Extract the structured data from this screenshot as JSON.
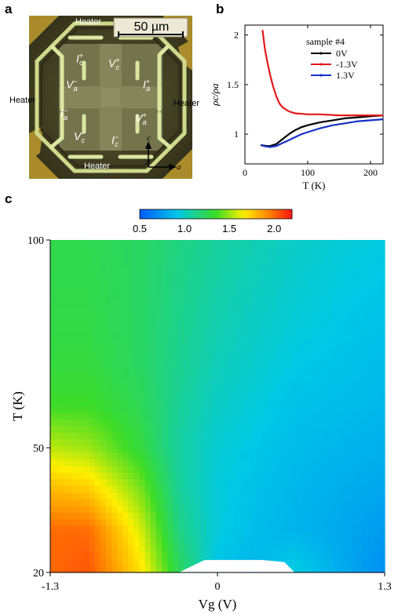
{
  "panels": {
    "a": "a",
    "b": "b",
    "c": "c"
  },
  "micrograph": {
    "scale_bar": "50 µm",
    "heater_labels": [
      "Heater",
      "Heater",
      "Heater",
      "Heater"
    ],
    "electrodes": [
      {
        "main": "I",
        "sub": "c",
        "sup": "+"
      },
      {
        "main": "V",
        "sub": "c",
        "sup": "+"
      },
      {
        "main": "V",
        "sub": "a",
        "sup": "−"
      },
      {
        "main": "I",
        "sub": "a",
        "sup": "+"
      },
      {
        "main": "I",
        "sub": "a",
        "sup": "−"
      },
      {
        "main": "V",
        "sub": "a",
        "sup": "+"
      },
      {
        "main": "V",
        "sub": "c",
        "sup": "−"
      },
      {
        "main": "I",
        "sub": "c",
        "sup": "−"
      }
    ],
    "axis_c": "c",
    "axis_a": "a",
    "colors": {
      "background": "#3d3a20",
      "gold": "#c6a536",
      "pad": "#d8e69a",
      "film": "#6a6b45"
    }
  },
  "chart_data": [
    {
      "type": "line",
      "panel": "b",
      "xlabel": "T (K)",
      "ylabel": "ρc/ρa",
      "xlim": [
        0,
        220
      ],
      "ylim": [
        0.7,
        2.1
      ],
      "xticks": [
        0,
        100,
        200
      ],
      "yticks": [
        1,
        1.5,
        2
      ],
      "legend_title": "sample #4",
      "legend_position": "top-right",
      "series": [
        {
          "name": "0V",
          "color": "#000000",
          "x": [
            25,
            30,
            35,
            40,
            50,
            60,
            70,
            80,
            90,
            100,
            120,
            140,
            160,
            180,
            200,
            220
          ],
          "y": [
            0.89,
            0.885,
            0.88,
            0.88,
            0.9,
            0.95,
            1.0,
            1.04,
            1.07,
            1.09,
            1.12,
            1.14,
            1.16,
            1.17,
            1.18,
            1.19
          ]
        },
        {
          "name": "-1.3V",
          "color": "#e31a1c",
          "x": [
            28,
            30,
            32,
            35,
            38,
            40,
            45,
            50,
            55,
            60,
            70,
            80,
            100,
            120,
            150,
            180,
            220
          ],
          "y": [
            2.05,
            1.95,
            1.85,
            1.75,
            1.66,
            1.6,
            1.48,
            1.38,
            1.31,
            1.27,
            1.23,
            1.21,
            1.2,
            1.2,
            1.19,
            1.19,
            1.19
          ]
        },
        {
          "name": "1.3V",
          "color": "#1530c8",
          "x": [
            25,
            30,
            35,
            40,
            50,
            60,
            70,
            80,
            90,
            100,
            120,
            140,
            160,
            180,
            200,
            220
          ],
          "y": [
            0.89,
            0.88,
            0.875,
            0.87,
            0.88,
            0.91,
            0.94,
            0.97,
            1.0,
            1.02,
            1.06,
            1.09,
            1.11,
            1.13,
            1.14,
            1.15
          ]
        }
      ]
    },
    {
      "type": "heatmap",
      "panel": "c",
      "xlabel": "Vg (V)",
      "ylabel": "T (K)",
      "xlim": [
        -1.3,
        1.3
      ],
      "ylim": [
        20,
        100
      ],
      "xticks": [
        "-1.3",
        "0",
        "1.3"
      ],
      "yticks": [
        "20",
        "50",
        "100"
      ],
      "colorbar": {
        "range": [
          0.5,
          2.2
        ],
        "ticks": [
          "0.5",
          "1.0",
          "1.5",
          "2.0"
        ]
      },
      "x": [
        -1.3,
        -1.0,
        -0.6,
        -0.3,
        0.0,
        0.3,
        0.6,
        1.0,
        1.3
      ],
      "y": [
        20,
        30,
        40,
        50,
        60,
        70,
        80,
        90,
        100
      ],
      "z": [
        [
          2.0,
          2.05,
          1.7,
          1.25,
          0.9,
          0.85,
          0.95,
          0.8,
          0.7
        ],
        [
          2.0,
          2.0,
          1.6,
          1.15,
          0.95,
          0.88,
          0.85,
          0.8,
          0.75
        ],
        [
          1.8,
          1.75,
          1.45,
          1.1,
          0.95,
          0.9,
          0.86,
          0.82,
          0.8
        ],
        [
          1.55,
          1.5,
          1.3,
          1.08,
          0.97,
          0.92,
          0.88,
          0.85,
          0.83
        ],
        [
          1.35,
          1.35,
          1.25,
          1.1,
          1.0,
          0.95,
          0.9,
          0.88,
          0.86
        ],
        [
          1.3,
          1.3,
          1.22,
          1.12,
          1.03,
          0.98,
          0.93,
          0.9,
          0.88
        ],
        [
          1.28,
          1.28,
          1.22,
          1.13,
          1.05,
          1.0,
          0.96,
          0.92,
          0.9
        ],
        [
          1.27,
          1.27,
          1.22,
          1.14,
          1.07,
          1.02,
          0.98,
          0.94,
          0.92
        ],
        [
          1.27,
          1.26,
          1.22,
          1.15,
          1.09,
          1.04,
          1.0,
          0.96,
          0.94
        ]
      ],
      "masked_region": {
        "x": [
          -0.3,
          0.6
        ],
        "y": [
          20,
          23
        ]
      }
    }
  ]
}
